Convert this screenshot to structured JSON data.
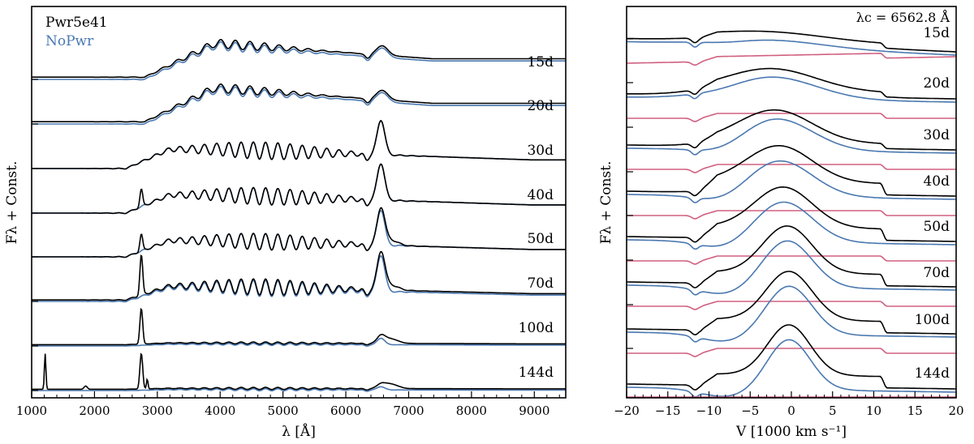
{
  "colors": {
    "pwr": "#000000",
    "nopwr": "#4a78b0",
    "diff": "#d06080"
  },
  "legend": {
    "series1": "Pwr5e41",
    "series2": "NoPwr"
  },
  "chart_data": [
    {
      "type": "line",
      "panel": "left",
      "xlabel": "λ [Å]",
      "ylabel": "Fλ + Const.",
      "xlim": [
        1000,
        9500
      ],
      "xticks": [
        "1000",
        "2000",
        "3000",
        "4000",
        "5000",
        "6000",
        "7000",
        "8000",
        "9000"
      ],
      "legend_position": "top-left",
      "epochs": [
        "15d",
        "20d",
        "30d",
        "40d",
        "50d",
        "70d",
        "100d",
        "144d"
      ],
      "series": [
        {
          "name": "Pwr5e41",
          "color": "#000000"
        },
        {
          "name": "NoPwr",
          "color": "#4a78b0"
        }
      ]
    },
    {
      "type": "line",
      "panel": "right",
      "xlabel": "V [1000 km s⁻¹]",
      "ylabel": "Fλ + Const.",
      "xlim": [
        -20,
        20
      ],
      "xticks": [
        "−20",
        "−15",
        "−10",
        "−5",
        "0",
        "5",
        "10",
        "15",
        "20"
      ],
      "annotation": "λc = 6562.8 Å",
      "epochs": [
        "15d",
        "20d",
        "30d",
        "40d",
        "50d",
        "70d",
        "100d",
        "144d"
      ],
      "series": [
        {
          "name": "Pwr5e41",
          "color": "#000000"
        },
        {
          "name": "NoPwr",
          "color": "#4a78b0"
        },
        {
          "color": "#d06080"
        }
      ]
    }
  ]
}
